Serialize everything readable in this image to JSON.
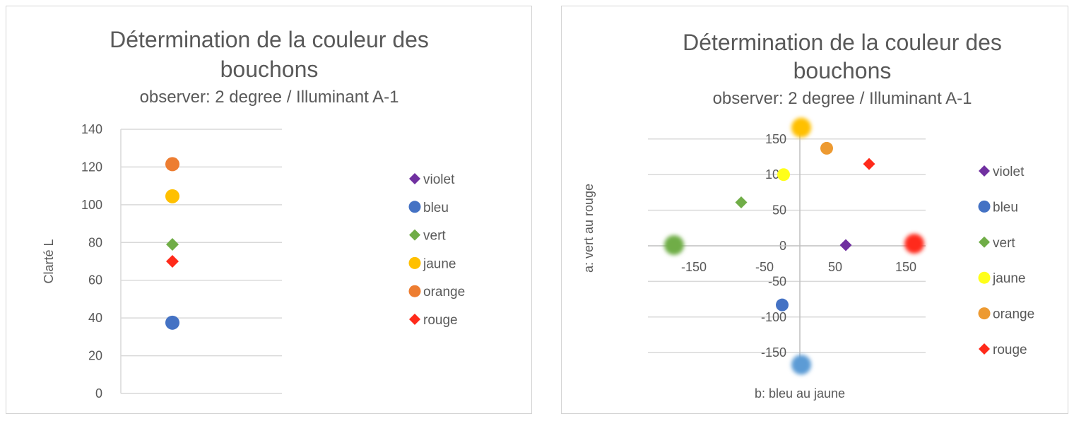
{
  "chart_data": [
    {
      "type": "scatter",
      "title": "Détermination de la couleur des bouchons",
      "subtitle": "observer: 2 degree / Illuminant A-1",
      "xlabel": "",
      "ylabel": "Clarté L",
      "ylim": [
        0,
        140
      ],
      "yticks": [
        "0",
        "20",
        "40",
        "60",
        "80",
        "100",
        "120",
        "140"
      ],
      "grid": true,
      "legend_position": "right",
      "series": [
        {
          "name": "violet",
          "marker": "diamond",
          "color": "#7030a0",
          "points": []
        },
        {
          "name": "bleu",
          "marker": "circle",
          "color": "#4472c4",
          "points": [
            {
              "x": 1,
              "y": 37.5
            }
          ]
        },
        {
          "name": "vert",
          "marker": "diamond",
          "color": "#70ad47",
          "points": [
            {
              "x": 1,
              "y": 79
            }
          ]
        },
        {
          "name": "jaune",
          "marker": "circle",
          "color": "#ffc000",
          "points": [
            {
              "x": 1,
              "y": 104.5
            }
          ]
        },
        {
          "name": "orange",
          "marker": "circle",
          "color": "#ed7d31",
          "points": [
            {
              "x": 1,
              "y": 121.5
            }
          ]
        },
        {
          "name": "rouge",
          "marker": "diamond",
          "color": "#ff2a1a",
          "points": [
            {
              "x": 1,
              "y": 70
            }
          ]
        }
      ]
    },
    {
      "type": "scatter",
      "title": "Détermination de la couleur des bouchons",
      "subtitle": "observer: 2 degree / Illuminant A-1",
      "xlabel": "b: bleu au jaune",
      "ylabel": "a: vert au rouge",
      "xlim": [
        -210,
        175
      ],
      "ylim": [
        -170,
        170
      ],
      "xticks": [
        "-150",
        "-50",
        "50",
        "150"
      ],
      "yticks": [
        "-150",
        "-100",
        "-50",
        "0",
        "50",
        "100",
        "150"
      ],
      "grid": true,
      "legend_position": "right",
      "series": [
        {
          "name": "violet",
          "marker": "diamond",
          "color": "#7030a0",
          "points": [
            {
              "x": 65,
              "y": 1
            }
          ]
        },
        {
          "name": "bleu",
          "marker": "circle",
          "color": "#4472c4",
          "points": [
            {
              "x": -25,
              "y": -83
            },
            {
              "x": 2,
              "y": -167,
              "glow": true,
              "color": "#5b9bd5"
            }
          ]
        },
        {
          "name": "vert",
          "marker": "diamond",
          "color": "#70ad47",
          "points": [
            {
              "x": -83,
              "y": 61
            },
            {
              "x": -178,
              "y": 1,
              "glow": true
            }
          ]
        },
        {
          "name": "jaune",
          "marker": "circle",
          "color": "#ffff1a",
          "points": [
            {
              "x": -23,
              "y": 100
            },
            {
              "x": 2,
              "y": 166,
              "glow": true,
              "color": "#ffc000"
            }
          ]
        },
        {
          "name": "orange",
          "marker": "circle",
          "color": "#ed9a31",
          "points": [
            {
              "x": 38,
              "y": 137
            }
          ]
        },
        {
          "name": "rouge",
          "marker": "diamond",
          "color": "#ff2a1a",
          "points": [
            {
              "x": 98,
              "y": 115
            },
            {
              "x": 162,
              "y": 3,
              "glow": true
            }
          ]
        }
      ]
    }
  ]
}
